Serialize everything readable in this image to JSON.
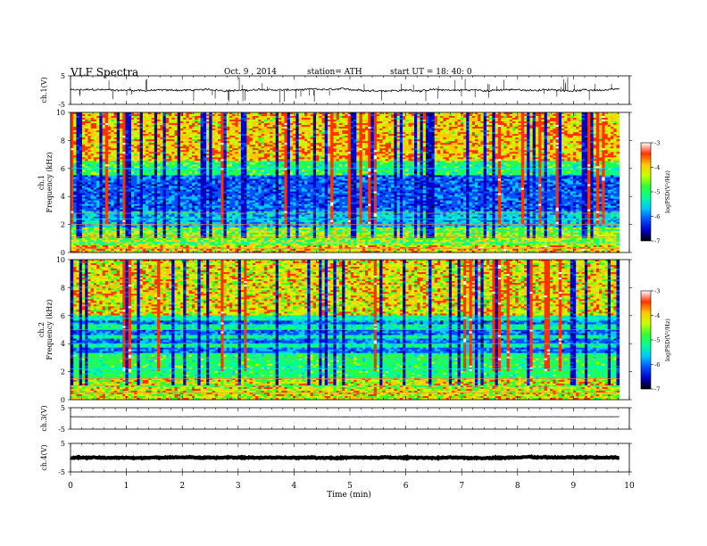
{
  "header": {
    "title": "VLF Spectra",
    "date": "Oct. 9  , 2014",
    "station": "station= ATH",
    "start": "start  UT =   18: 40: 0"
  },
  "colorscale": {
    "colors": [
      "#000000",
      "#0000c8",
      "#0050ff",
      "#00c8ff",
      "#00ff96",
      "#32ff32",
      "#c8ff00",
      "#ffc800",
      "#ff3200",
      "#ffffff"
    ]
  },
  "chart_data": [
    {
      "type": "line",
      "panel": "ch1",
      "ylabel": "ch.1(V)",
      "yticks": [
        "5",
        "-5"
      ],
      "ylim": [
        -5,
        5
      ],
      "xlim": [
        0,
        10
      ],
      "data_end_min": 9.82,
      "baseline": 0,
      "noise_amplitude": 0.6,
      "spikes": true
    },
    {
      "type": "heatmap",
      "panel": "spec1",
      "ylabel": "Frequency (kHz)",
      "ylabel2": "ch.1",
      "yticks": [
        "0",
        "2",
        "4",
        "6",
        "8",
        "10"
      ],
      "ylim": [
        0,
        10
      ],
      "xlim": [
        0,
        10
      ],
      "data_end_min": 9.82,
      "colorbar": {
        "label": "logPSD(V²/Hz)",
        "ticks": [
          "-3",
          "-4",
          "-5",
          "-6",
          "-7"
        ],
        "range": [
          -7,
          -3
        ]
      }
    },
    {
      "type": "heatmap",
      "panel": "spec2",
      "ylabel": "Frequency (kHz)",
      "ylabel2": "ch.2",
      "yticks": [
        "0",
        "2",
        "4",
        "6",
        "8",
        "10"
      ],
      "ylim": [
        0,
        10
      ],
      "xlim": [
        0,
        10
      ],
      "data_end_min": 9.82,
      "colorbar": {
        "label": "logPSD(V²/Hz)",
        "ticks": [
          "-3",
          "-4",
          "-5",
          "-6",
          "-7"
        ],
        "range": [
          -7,
          -3
        ]
      }
    },
    {
      "type": "line",
      "panel": "ch3",
      "ylabel": "ch.3(V)",
      "yticks": [
        "5",
        "-5"
      ],
      "ylim": [
        -5,
        5
      ],
      "xlim": [
        0,
        10
      ],
      "data_end_min": 9.82,
      "baseline": 0.8,
      "noise_amplitude": 0.05,
      "spikes": false
    },
    {
      "type": "line",
      "panel": "ch4",
      "ylabel": "ch.4(V)",
      "yticks": [
        "5",
        "-5"
      ],
      "ylim": [
        -5,
        5
      ],
      "xlim": [
        0,
        10
      ],
      "data_end_min": 9.82,
      "baseline": 0,
      "noise_amplitude": 0.35,
      "spikes": false,
      "thick": true
    }
  ],
  "xaxis": {
    "label": "Time (min)",
    "ticks": [
      "0",
      "1",
      "2",
      "3",
      "4",
      "5",
      "6",
      "7",
      "8",
      "9",
      "10"
    ],
    "xlim": [
      0,
      10
    ]
  }
}
